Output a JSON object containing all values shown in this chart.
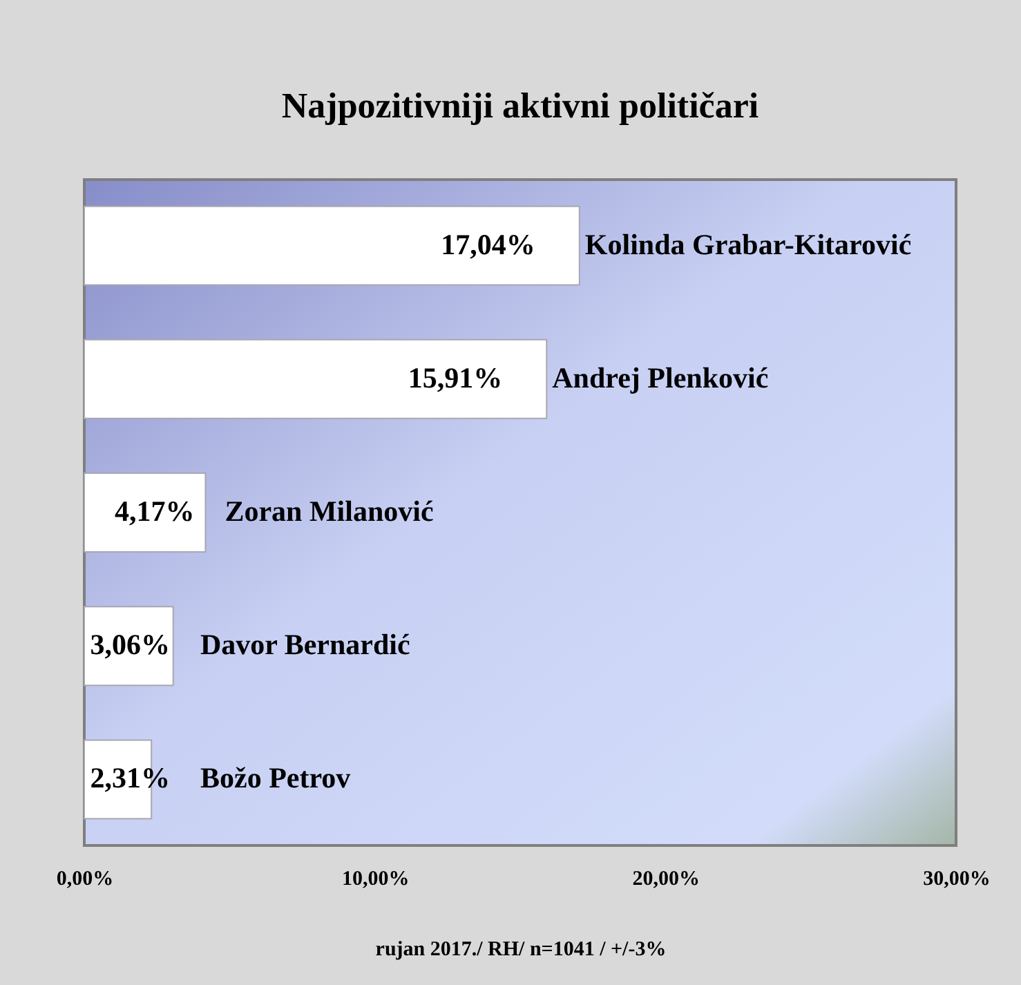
{
  "chart_data": {
    "type": "bar",
    "orientation": "horizontal",
    "title": "Najpozitivniji aktivni političari",
    "categories": [
      "Kolinda Grabar-Kitarović",
      "Andrej Plenković",
      "Zoran Milanović",
      "Davor Bernardić",
      "Božo Petrov"
    ],
    "values": [
      17.04,
      15.91,
      4.17,
      3.06,
      2.31
    ],
    "color": "#ffffff",
    "value_labels": [
      "17,04%",
      "15,91%",
      "4,17%",
      "3,06%",
      "2,31%"
    ],
    "xlim": [
      0,
      30
    ],
    "xticks": [
      {
        "value": 0,
        "label": "0,00%"
      },
      {
        "value": 10,
        "label": "10,00%"
      },
      {
        "value": 20,
        "label": "20,00%"
      },
      {
        "value": 30,
        "label": "30,00%"
      }
    ],
    "annotations": [
      "rujan 2017./ RH/ n=1041 / +/-3%"
    ]
  }
}
